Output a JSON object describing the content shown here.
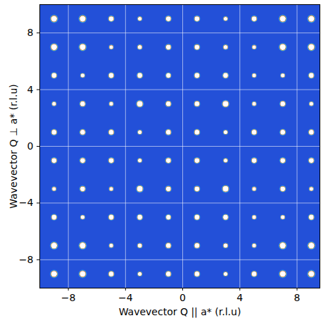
{
  "chart_data": {
    "type": "heatmap",
    "xlabel": "Wavevector Q || a* (r.l.u)",
    "ylabel": "Wavevector Q ⊥ a* (r.l.u)",
    "xlim": [
      -10,
      9.6
    ],
    "ylim": [
      -10,
      10
    ],
    "xticks": [
      {
        "value": -8,
        "label": "−8"
      },
      {
        "value": -4,
        "label": "−4"
      },
      0,
      4,
      8
    ],
    "yticks": [
      {
        "value": -8,
        "label": "−8"
      },
      {
        "value": -4,
        "label": "−4"
      },
      0,
      4,
      8
    ],
    "grid": true,
    "x": [
      -9,
      -7,
      -5,
      -3,
      -1,
      1,
      3,
      5,
      7,
      9
    ],
    "y": [
      9,
      7,
      5,
      3,
      1,
      -1,
      -3,
      -5,
      -7,
      -9
    ],
    "cells": [
      [
        10,
        10,
        6,
        3,
        6,
        6,
        3,
        6,
        10,
        10
      ],
      [
        10,
        10,
        3,
        4,
        6,
        6,
        4,
        3,
        10,
        10
      ],
      [
        6,
        3,
        6,
        6,
        5,
        6,
        6,
        3,
        3,
        6
      ],
      [
        3,
        6,
        3,
        9,
        6,
        6,
        9,
        3,
        6,
        3
      ],
      [
        6,
        6,
        6,
        3,
        6,
        6,
        3,
        6,
        6,
        6
      ],
      [
        6,
        6,
        6,
        3,
        6,
        6,
        3,
        6,
        6,
        6
      ],
      [
        3,
        6,
        3,
        9,
        6,
        6,
        9,
        3,
        6,
        3
      ],
      [
        6,
        3,
        6,
        6,
        5,
        6,
        6,
        3,
        3,
        6
      ],
      [
        10,
        10,
        3,
        4,
        6,
        6,
        4,
        3,
        10,
        10
      ],
      [
        10,
        10,
        6,
        3,
        6,
        6,
        3,
        6,
        10,
        10
      ]
    ]
  }
}
